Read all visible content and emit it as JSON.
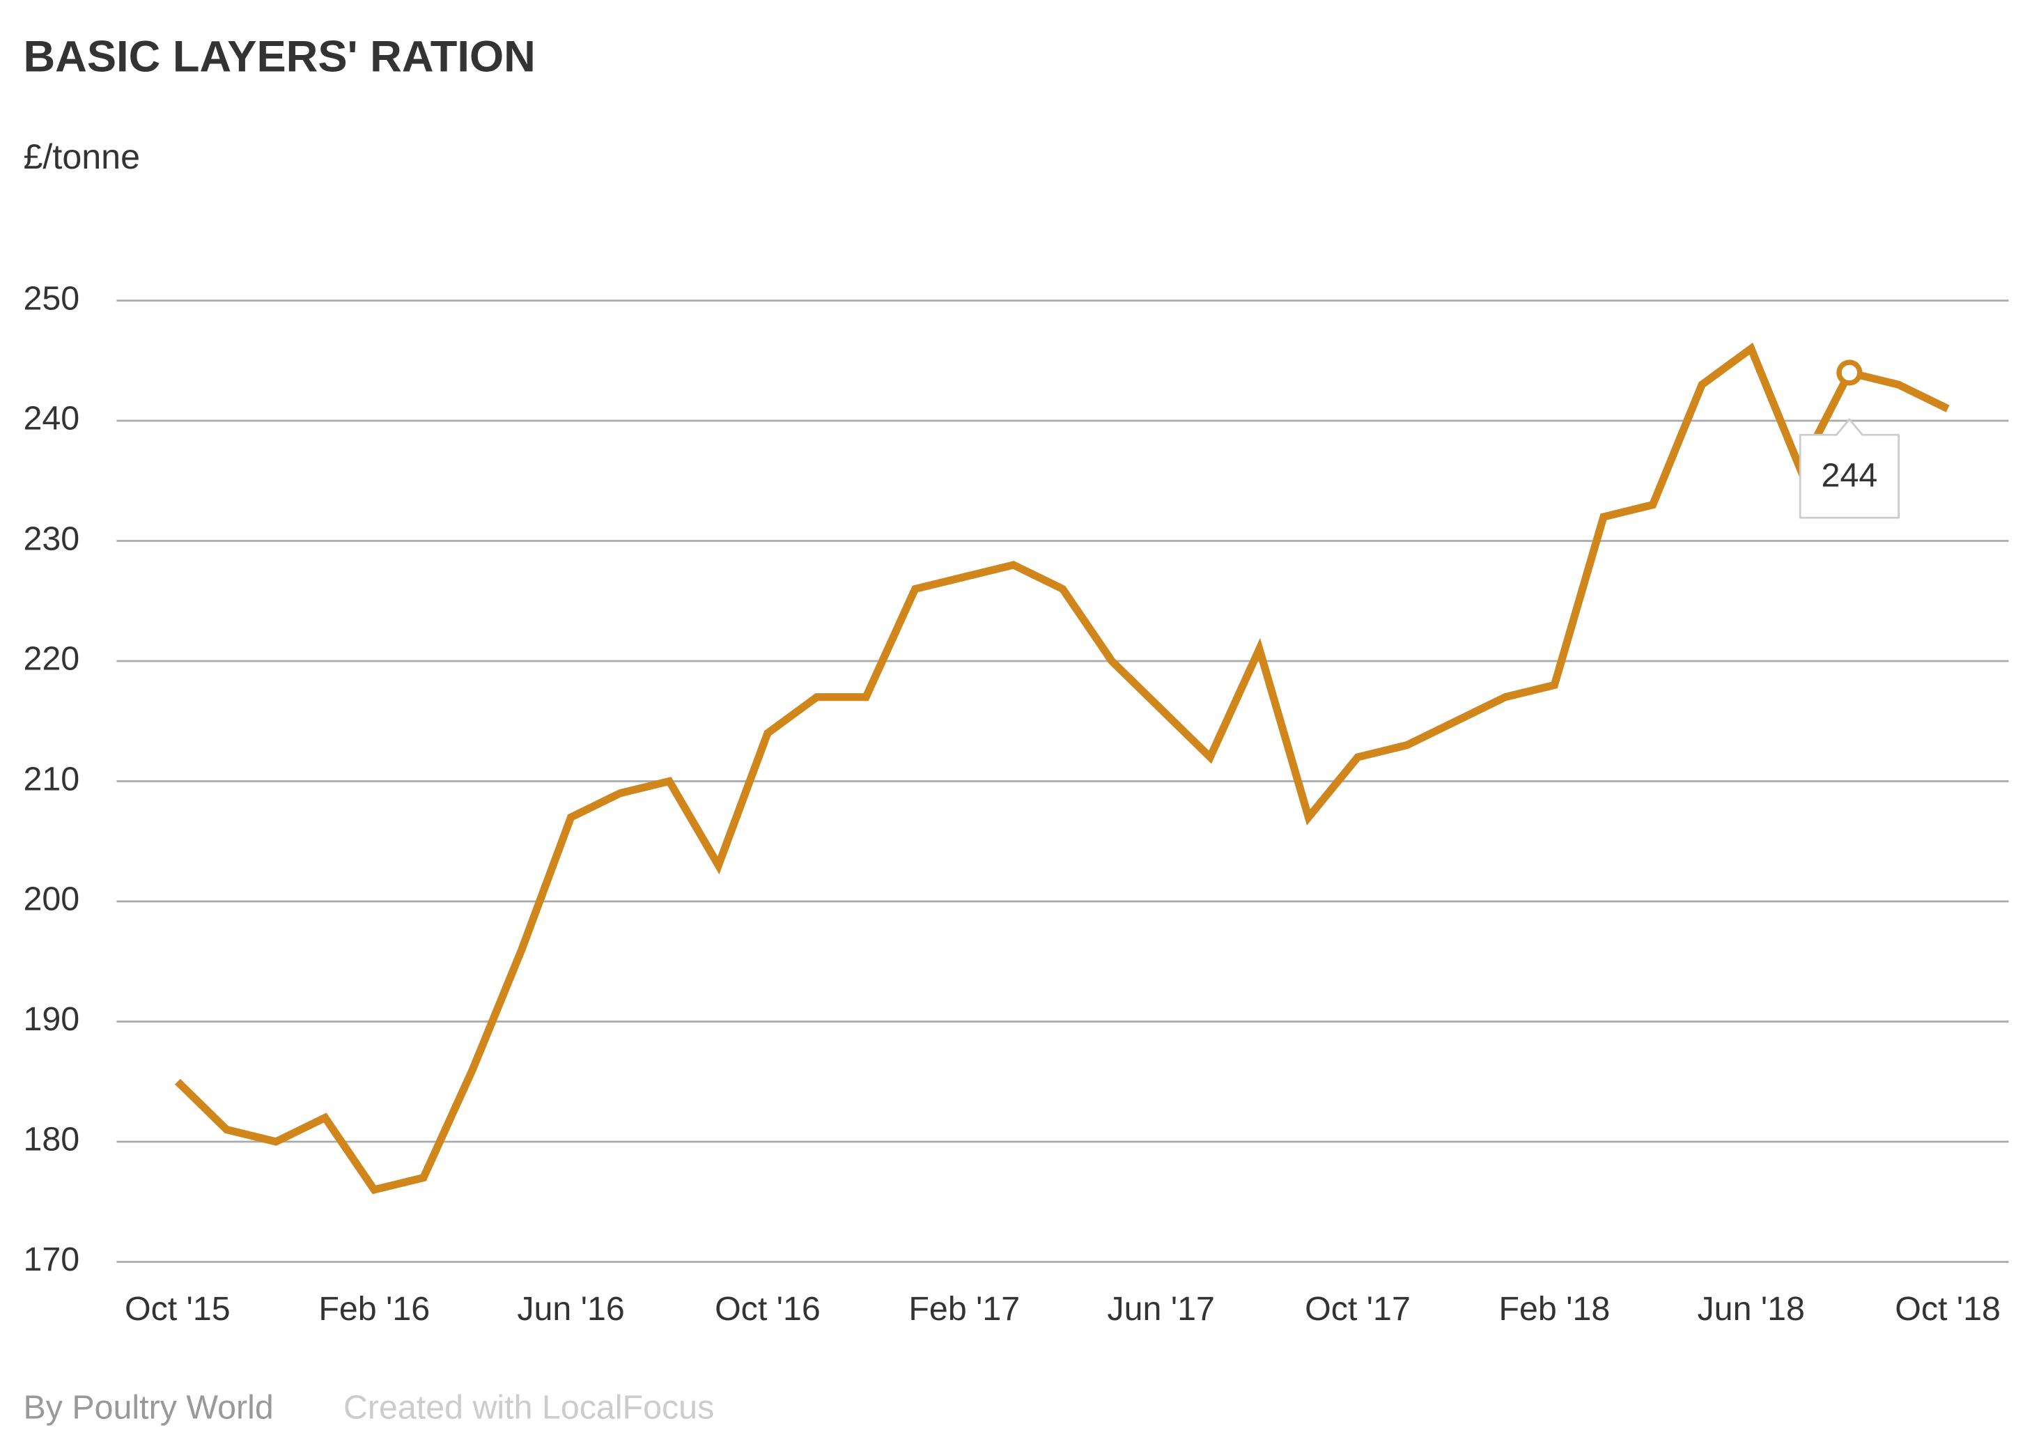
{
  "chart_data": {
    "type": "line",
    "title": "BASIC LAYERS' RATION",
    "subtitle": "£/tonne",
    "source": "By Poultry World",
    "credit": "Created with LocalFocus",
    "categories": [
      "Oct '15",
      null,
      null,
      null,
      "Feb '16",
      null,
      null,
      null,
      "Jun '16",
      null,
      null,
      null,
      "Oct '16",
      null,
      null,
      null,
      "Feb '17",
      null,
      null,
      null,
      "Jun '17",
      null,
      null,
      null,
      "Oct '17",
      null,
      null,
      null,
      "Feb '18",
      null,
      null,
      null,
      "Jun '18",
      null,
      null,
      null,
      "Oct '18"
    ],
    "values": [
      185,
      181,
      180,
      182,
      176,
      177,
      186,
      196,
      207,
      209,
      210,
      203,
      214,
      217,
      217,
      226,
      227,
      228,
      226,
      220,
      216,
      212,
      221,
      207,
      212,
      213,
      215,
      217,
      218,
      232,
      233,
      243,
      246,
      236,
      244,
      243,
      241
    ],
    "value_labels": [
      null,
      null,
      null,
      null,
      null,
      null,
      null,
      null,
      null,
      null,
      null,
      null,
      null,
      null,
      null,
      null,
      null,
      null,
      null,
      null,
      null,
      null,
      null,
      null,
      null,
      null,
      null,
      null,
      null,
      null,
      null,
      null,
      null,
      null,
      "244",
      null,
      null
    ],
    "color": "#d0861b",
    "ylim": [
      170,
      250
    ],
    "yticks": [
      170,
      180,
      190,
      200,
      210,
      220,
      230,
      240,
      250
    ],
    "grid": true
  }
}
